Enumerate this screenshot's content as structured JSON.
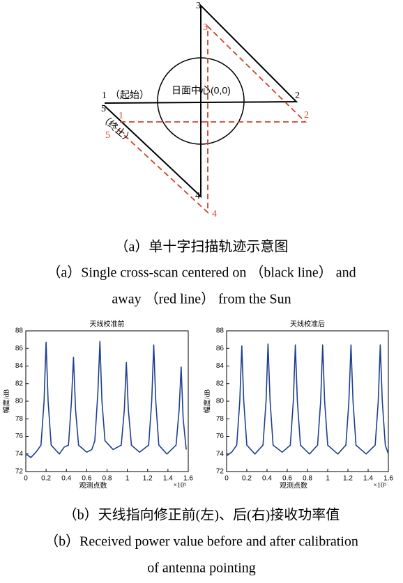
{
  "diagram": {
    "black_points": [
      "1",
      "2",
      "3",
      "4",
      "5"
    ],
    "start_note": "（起始）",
    "end_note": "（终止）",
    "red_points": [
      "1",
      "2",
      "3",
      "4",
      "5"
    ],
    "center_label": "日面中心(0,0)"
  },
  "captions": {
    "a_cn": "（a）单十字扫描轨迹示意图",
    "a_en_1": "（a）Single cross-scan centered on （black line） and",
    "a_en_2": "away （red line） from the Sun",
    "b_cn": "（b）天线指向修正前(左)、后(右)接收功率值",
    "b_en_1": "（b）Received power value before and after calibration",
    "b_en_2": "of antenna pointing"
  },
  "chart_data": [
    {
      "type": "line",
      "title": "天线校准前",
      "xlabel": "观测点数",
      "ylabel": "幅度/dB",
      "x_multiplier": "×10⁵",
      "color": "#1f3f8f",
      "x": [
        0,
        0.05,
        0.1,
        0.15,
        0.18,
        0.2,
        0.22,
        0.25,
        0.33,
        0.38,
        0.42,
        0.45,
        0.47,
        0.49,
        0.52,
        0.6,
        0.65,
        0.68,
        0.71,
        0.73,
        0.75,
        0.78,
        0.86,
        0.94,
        0.97,
        0.99,
        1.01,
        1.04,
        1.12,
        1.21,
        1.24,
        1.26,
        1.28,
        1.31,
        1.39,
        1.48,
        1.51,
        1.53,
        1.55,
        1.58
      ],
      "values": [
        74,
        73.6,
        74.2,
        75,
        80,
        86.7,
        80,
        75,
        74,
        74.8,
        75,
        80,
        85,
        79,
        75,
        74.2,
        74.5,
        75.5,
        81,
        86.8,
        80,
        75.5,
        74.5,
        75,
        79,
        84.4,
        79,
        75,
        74.2,
        75,
        80,
        86.4,
        80,
        75,
        74,
        75,
        79,
        83.9,
        78,
        74.5
      ],
      "xlim": [
        0,
        1.6
      ],
      "xticks": [
        0,
        0.2,
        0.4,
        0.6,
        0.8,
        1,
        1.2,
        1.4,
        1.6
      ],
      "ylim": [
        72,
        88
      ],
      "yticks": [
        72,
        74,
        76,
        78,
        80,
        82,
        84,
        86,
        88
      ]
    },
    {
      "type": "line",
      "title": "天线校准后",
      "xlabel": "观测点数",
      "ylabel": "幅度/dB",
      "x_multiplier": "×10⁵",
      "color": "#1f3f8f",
      "x": [
        0,
        0.05,
        0.1,
        0.13,
        0.15,
        0.17,
        0.2,
        0.28,
        0.36,
        0.39,
        0.41,
        0.43,
        0.46,
        0.55,
        0.63,
        0.66,
        0.68,
        0.7,
        0.73,
        0.82,
        0.9,
        0.93,
        0.95,
        0.97,
        1,
        1.1,
        1.18,
        1.21,
        1.23,
        1.25,
        1.28,
        1.38,
        1.47,
        1.5,
        1.52,
        1.54,
        1.57,
        1.6
      ],
      "values": [
        73.8,
        74.2,
        75,
        80,
        86.3,
        80,
        75,
        74,
        75,
        80,
        86.5,
        80,
        75,
        74.2,
        75,
        80,
        86.4,
        80,
        75,
        74,
        75,
        80,
        86.4,
        80,
        75,
        74,
        75,
        80,
        86.4,
        80,
        75,
        74,
        75,
        80,
        86.4,
        80,
        75,
        74
      ],
      "xlim": [
        0,
        1.6
      ],
      "xticks": [
        0,
        0.2,
        0.4,
        0.6,
        0.8,
        1,
        1.2,
        1.4,
        1.6
      ],
      "ylim": [
        72,
        88
      ],
      "yticks": [
        72,
        74,
        76,
        78,
        80,
        82,
        84,
        86,
        88
      ]
    }
  ]
}
